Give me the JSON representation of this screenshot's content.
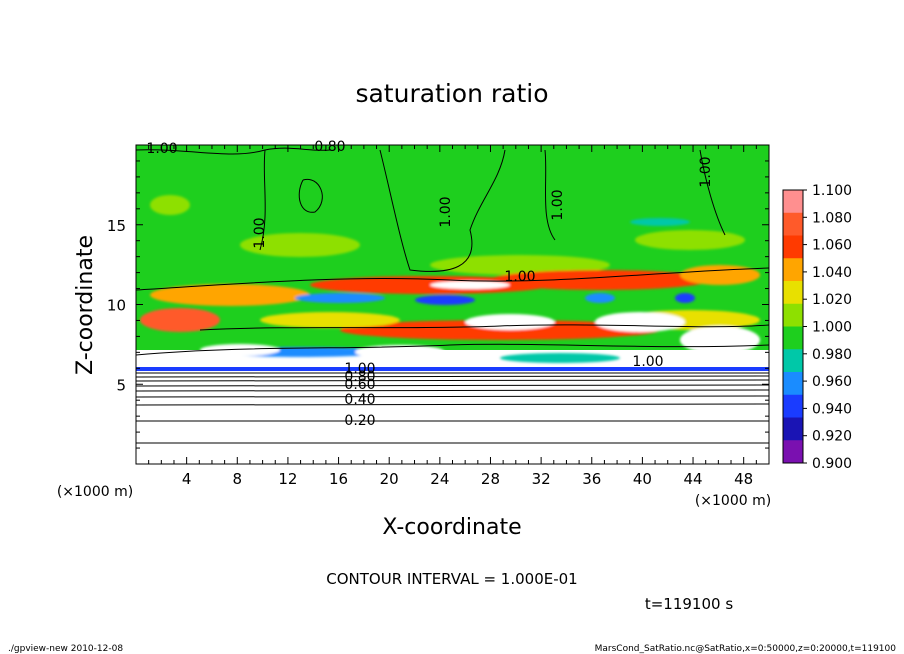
{
  "chart_data": {
    "type": "heatmap",
    "title": "saturation ratio",
    "xlabel": "X-coordinate",
    "ylabel": "Z-coordinate",
    "x_unit": "(×1000 m)",
    "y_unit": "(×1000 m)",
    "xlim": [
      0,
      50
    ],
    "ylim": [
      0,
      20
    ],
    "x_ticks": [
      4,
      8,
      12,
      16,
      20,
      24,
      28,
      32,
      36,
      40,
      44,
      48
    ],
    "y_ticks": [
      5,
      10,
      15
    ],
    "colorbar": {
      "levels": [
        "1.100",
        "1.080",
        "1.060",
        "1.040",
        "1.020",
        "1.000",
        "0.980",
        "0.960",
        "0.940",
        "0.920",
        "0.900"
      ],
      "colors": [
        "#ff8f8f",
        "#ff5a2a",
        "#ff3a00",
        "#ffa500",
        "#e8e000",
        "#8ee000",
        "#1ecf1e",
        "#00c8a8",
        "#1a8cff",
        "#1a3cff",
        "#1a14b4",
        "#7a10b0"
      ]
    },
    "contour_labels": [
      "1.00",
      "0.80",
      "1.00",
      "1.00",
      "1.00",
      "1.00",
      "1.00",
      "1.00",
      "0.60",
      "0.40",
      "0.20",
      "1.00",
      "0.80"
    ],
    "contour_interval_text": "CONTOUR INTERVAL = 1.000E-01",
    "time_label": "t=119100 s"
  },
  "footer": {
    "left": "./gpview-new  2010-12-08",
    "right": "MarsCond_SatRatio.nc@SatRatio,x=0:50000,z=0:20000,t=119100"
  }
}
